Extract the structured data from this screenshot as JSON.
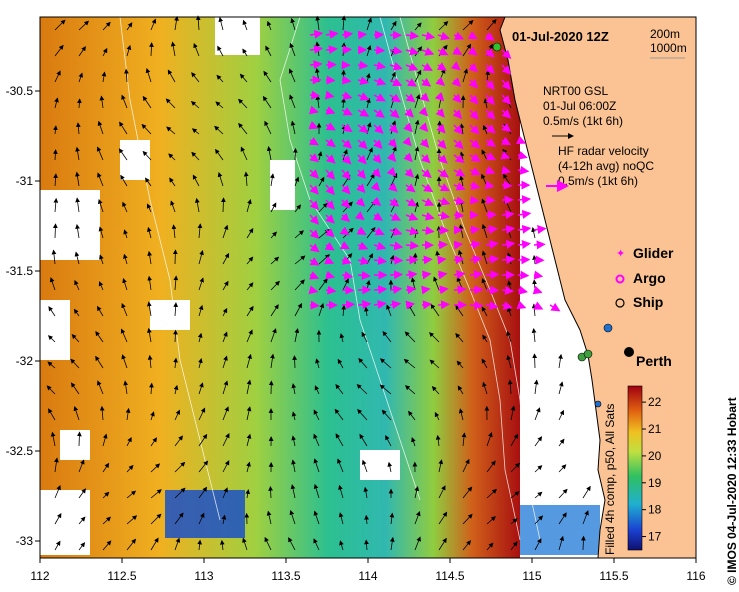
{
  "title": "01-Jul-2020 12Z",
  "depth_legend": [
    "200m",
    "1000m"
  ],
  "model_block": [
    "NRT00 GSL",
    "01-Jul 06:00Z",
    "0.5m/s (1kt 6h)"
  ],
  "radar_block": [
    "HF radar velocity",
    "(4-12h avg) noQC",
    "0.5m/s (1kt 6h)"
  ],
  "legend": [
    {
      "label": "Glider",
      "color": "#ff00ff"
    },
    {
      "label": "Argo",
      "color": "#ff00ff"
    },
    {
      "label": "Ship",
      "color": "#000000"
    }
  ],
  "place_label": "Perth",
  "colorbar": {
    "caption": "Filled 4h comp, p50, All Sats",
    "ticks": [
      "17",
      "18",
      "19",
      "20",
      "21",
      "22"
    ],
    "min": 16.5,
    "max": 22.6
  },
  "credit": "© IMOS 04-Jul-2020 12:33 Hobart",
  "x_ticks": [
    "112",
    "112.5",
    "113",
    "113.5",
    "114",
    "114.5",
    "115",
    "115.5",
    "116"
  ],
  "y_ticks": [
    "-30.5",
    "-31",
    "-31.5",
    "-32",
    "-32.5",
    "-33"
  ],
  "colors": {
    "land": "#fbc393",
    "model_arrow": "#000000",
    "radar_arrow": "#ff00ff"
  }
}
